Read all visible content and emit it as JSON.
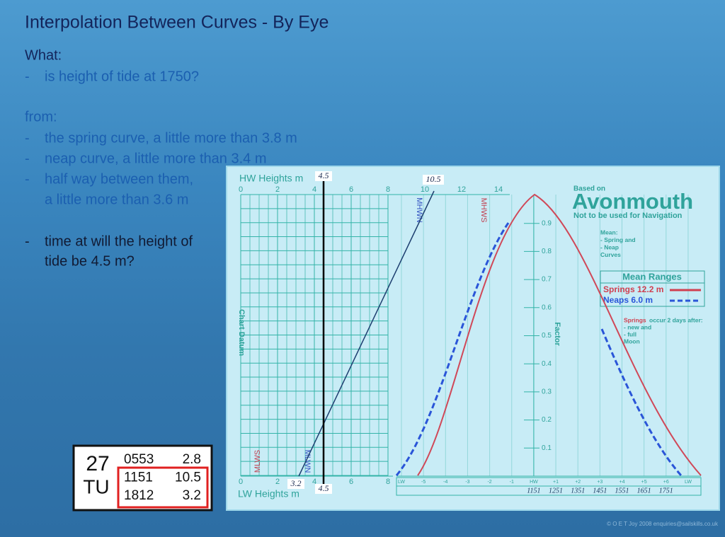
{
  "title": "Interpolation Between Curves - By Eye",
  "body": {
    "what": "What:",
    "q1": "is height of tide at 1750?",
    "from": "from:",
    "items": [
      "the spring curve, a little more than 3.8 m",
      "neap curve, a little more than 3.4 m",
      "half way between them,",
      "a little more than 3.6 m"
    ],
    "q2a": "time at will the height of",
    "q2b": "tide be 4.5 m?"
  },
  "tide_table": {
    "day": "27",
    "weekday": "TU",
    "rows": [
      [
        "0553",
        "2.8"
      ],
      [
        "1151",
        "10.5"
      ],
      [
        "1812",
        "3.2"
      ]
    ]
  },
  "diagram": {
    "hw_label": "HW Heights m",
    "hw_ticks": [
      0,
      2,
      4,
      6,
      8,
      10,
      12,
      14
    ],
    "lw_label": "LW Heights m",
    "lw_ticks": [
      0,
      2,
      4,
      6,
      8
    ],
    "factor_label": "Factor",
    "factor_ticks": [
      0.1,
      0.2,
      0.3,
      0.4,
      0.5,
      0.6,
      0.7,
      0.8,
      0.9
    ],
    "chart_datum": "Chart Datum",
    "mhwn": "MHWN",
    "mhws": "MHWS",
    "mlws": "MLWS",
    "mlwn": "MLWN",
    "based_on": "Based on",
    "port": "Avonmouth",
    "warning": "Not to be used for Navigation",
    "mean_note": [
      "Mean:",
      "-  Spring and",
      "-  Neap",
      "Curves"
    ],
    "ranges_title": "Mean Ranges",
    "springs": "Springs 12.2 m",
    "neaps": "Neaps    6.0 m",
    "springs_note": {
      "word": "Springs",
      "rest": "occur 2 days after:",
      "lines": [
        "-  new and",
        "-  full",
        "Moon"
      ]
    },
    "hours": [
      "LW",
      "-5",
      "-4",
      "-3",
      "-2",
      "-1",
      "HW",
      "+1",
      "+2",
      "+3",
      "+4",
      "+5",
      "+6",
      "LW"
    ],
    "times": [
      "1151",
      "1251",
      "1351",
      "1451",
      "1551",
      "1651",
      "1751"
    ],
    "annotations": {
      "hw_mark": "4.5",
      "hw_high": "10.5",
      "lw_low": "3.2",
      "lw_mark": "4.5"
    }
  },
  "copyright": "© O E T Joy 2008 enquiries@sailskills.co.uk"
}
